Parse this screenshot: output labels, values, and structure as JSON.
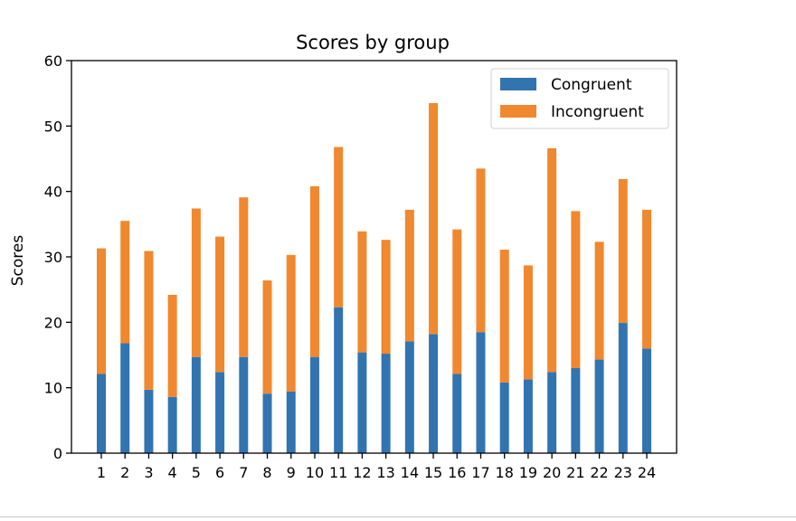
{
  "chart_data": {
    "type": "bar",
    "stacked": true,
    "title": "Scores by group",
    "xlabel": "",
    "ylabel": "Scores",
    "ylim": [
      0,
      60
    ],
    "yticks": [
      0,
      10,
      20,
      30,
      40,
      50,
      60
    ],
    "grid": false,
    "legend_position": "upper-right",
    "categories": [
      "1",
      "2",
      "3",
      "4",
      "5",
      "6",
      "7",
      "8",
      "9",
      "10",
      "11",
      "12",
      "13",
      "14",
      "15",
      "16",
      "17",
      "18",
      "19",
      "20",
      "21",
      "22",
      "23",
      "24"
    ],
    "series": [
      {
        "name": "Congruent",
        "color": "#3274b0",
        "values": [
          12.1,
          16.8,
          9.7,
          8.6,
          14.7,
          12.4,
          14.7,
          9.1,
          9.4,
          14.7,
          22.3,
          15.4,
          15.2,
          17.1,
          18.2,
          12.1,
          18.5,
          10.8,
          11.3,
          12.4,
          13.0,
          14.3,
          19.9,
          16.0
        ]
      },
      {
        "name": "Incongruent",
        "color": "#f0882f",
        "values": [
          19.2,
          18.7,
          21.2,
          15.6,
          22.7,
          20.7,
          24.4,
          17.3,
          20.9,
          26.1,
          24.5,
          18.5,
          17.4,
          20.1,
          35.3,
          22.1,
          25.0,
          20.3,
          17.4,
          34.2,
          24.0,
          18.0,
          22.0,
          21.2
        ]
      }
    ]
  }
}
